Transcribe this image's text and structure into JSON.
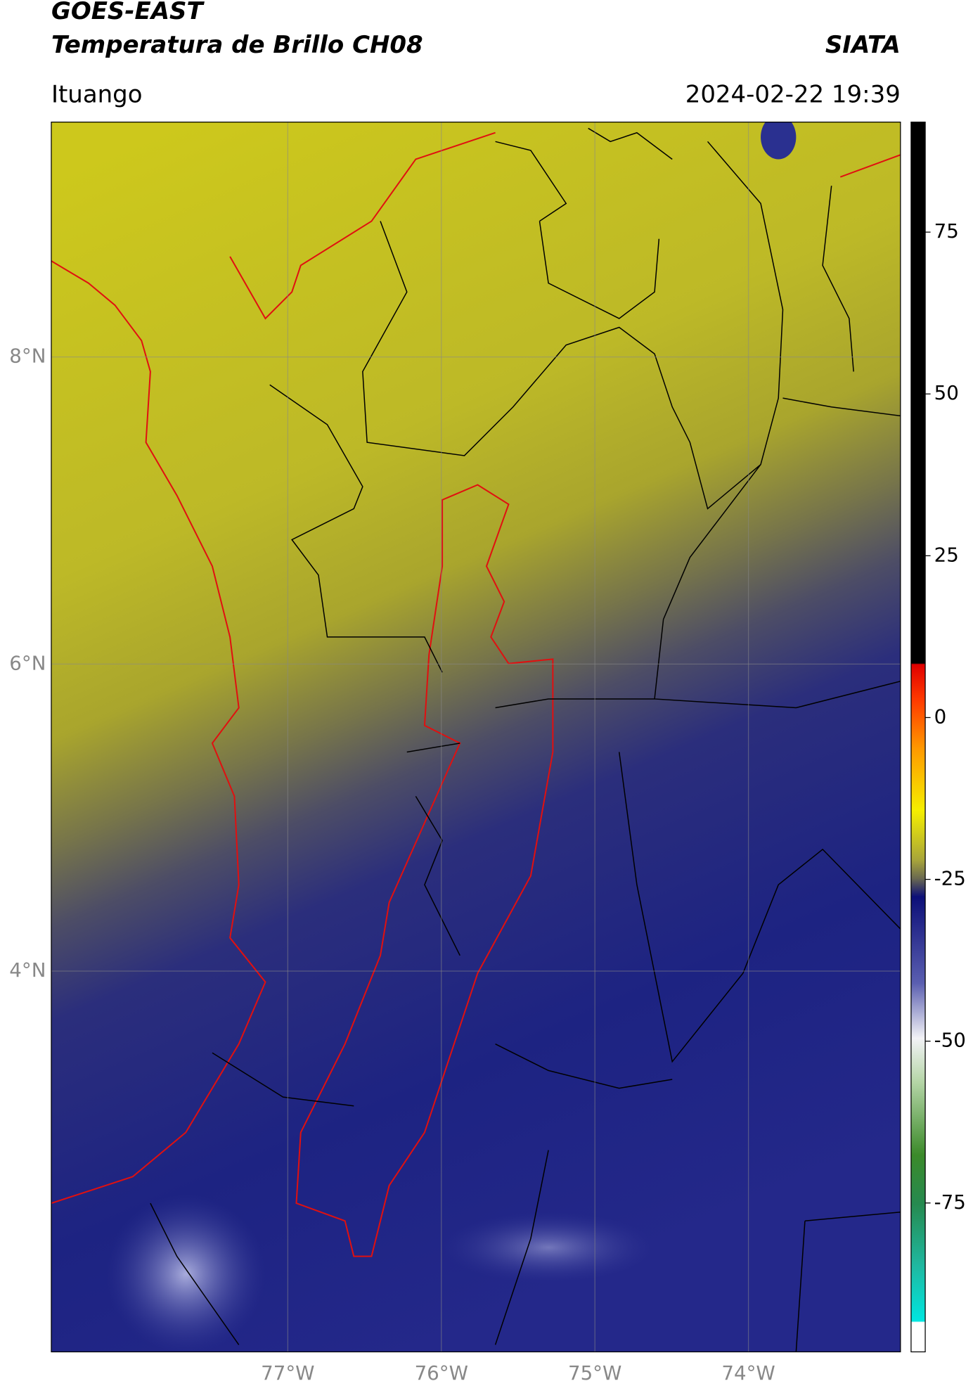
{
  "chart_data": {
    "type": "map",
    "title": "GOES-EAST",
    "subtitle": "Temperatura de Brillo CH08",
    "source": "SIATA",
    "location": "Ituango",
    "datetime": "2024-02-22 19:39",
    "xlim": [
      -78.54,
      -73.01
    ],
    "ylim": [
      1.52,
      9.53
    ],
    "xticks": [
      {
        "value": -77,
        "label": "77°W"
      },
      {
        "value": -76,
        "label": "76°W"
      },
      {
        "value": -75,
        "label": "75°W"
      },
      {
        "value": -74,
        "label": "74°W"
      }
    ],
    "yticks": [
      {
        "value": 8,
        "label": "8°N"
      },
      {
        "value": 6,
        "label": "6°N"
      },
      {
        "value": 4,
        "label": "4°N"
      }
    ],
    "grid": true,
    "colorbar": {
      "lim": [
        -98,
        92
      ],
      "ticks": [
        75,
        50,
        25,
        0,
        -25,
        -50,
        -75
      ]
    }
  }
}
